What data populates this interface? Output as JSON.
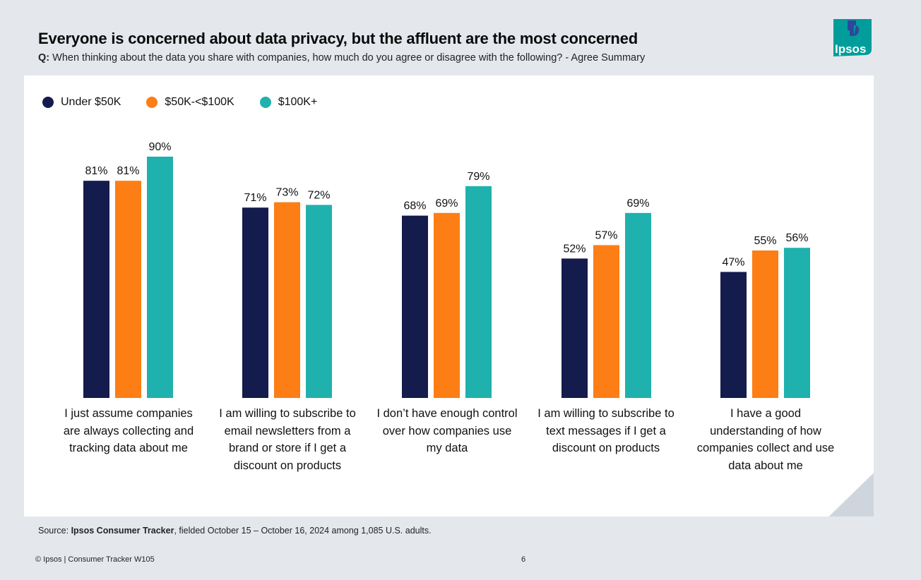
{
  "header": {
    "title": "Everyone is concerned about data privacy, but the affluent are the most concerned",
    "question_prefix": "Q:",
    "question_text": " When thinking about the data you share with companies, how much do you agree or disagree with the following? - Agree Summary"
  },
  "logo": {
    "text": "Ipsos",
    "color": "#009d9a",
    "accent": "#2f469c"
  },
  "chart_data": {
    "type": "bar",
    "categories": [
      "I just assume companies are always collecting and tracking data about me",
      "I am willing to subscribe to email newsletters from a brand or store if I get a discount on products",
      "I don’t have enough control over how companies use my data",
      "I am willing to subscribe to text messages if I get a discount on products",
      "I have a good understanding of how companies collect and use data about me"
    ],
    "series": [
      {
        "name": "Under $50K",
        "color": "#141b4d",
        "values": [
          81,
          71,
          68,
          52,
          47
        ]
      },
      {
        "name": "$50K-<$100K",
        "color": "#fd7e14",
        "values": [
          81,
          73,
          69,
          57,
          55
        ]
      },
      {
        "name": "$100K+",
        "color": "#1fb1ae",
        "values": [
          90,
          72,
          79,
          69,
          56
        ]
      }
    ],
    "value_suffix": "%",
    "ylim": [
      0,
      100
    ],
    "legend_position": "top-left",
    "grid": false
  },
  "footer": {
    "source_prefix": "Source: ",
    "source_bold": "Ipsos Consumer Tracker",
    "source_rest": ", fielded October 15 – October 16, 2024 among 1,085 U.S. adults.",
    "copyright": "© Ipsos | Consumer Tracker W105",
    "page_number": "6"
  }
}
